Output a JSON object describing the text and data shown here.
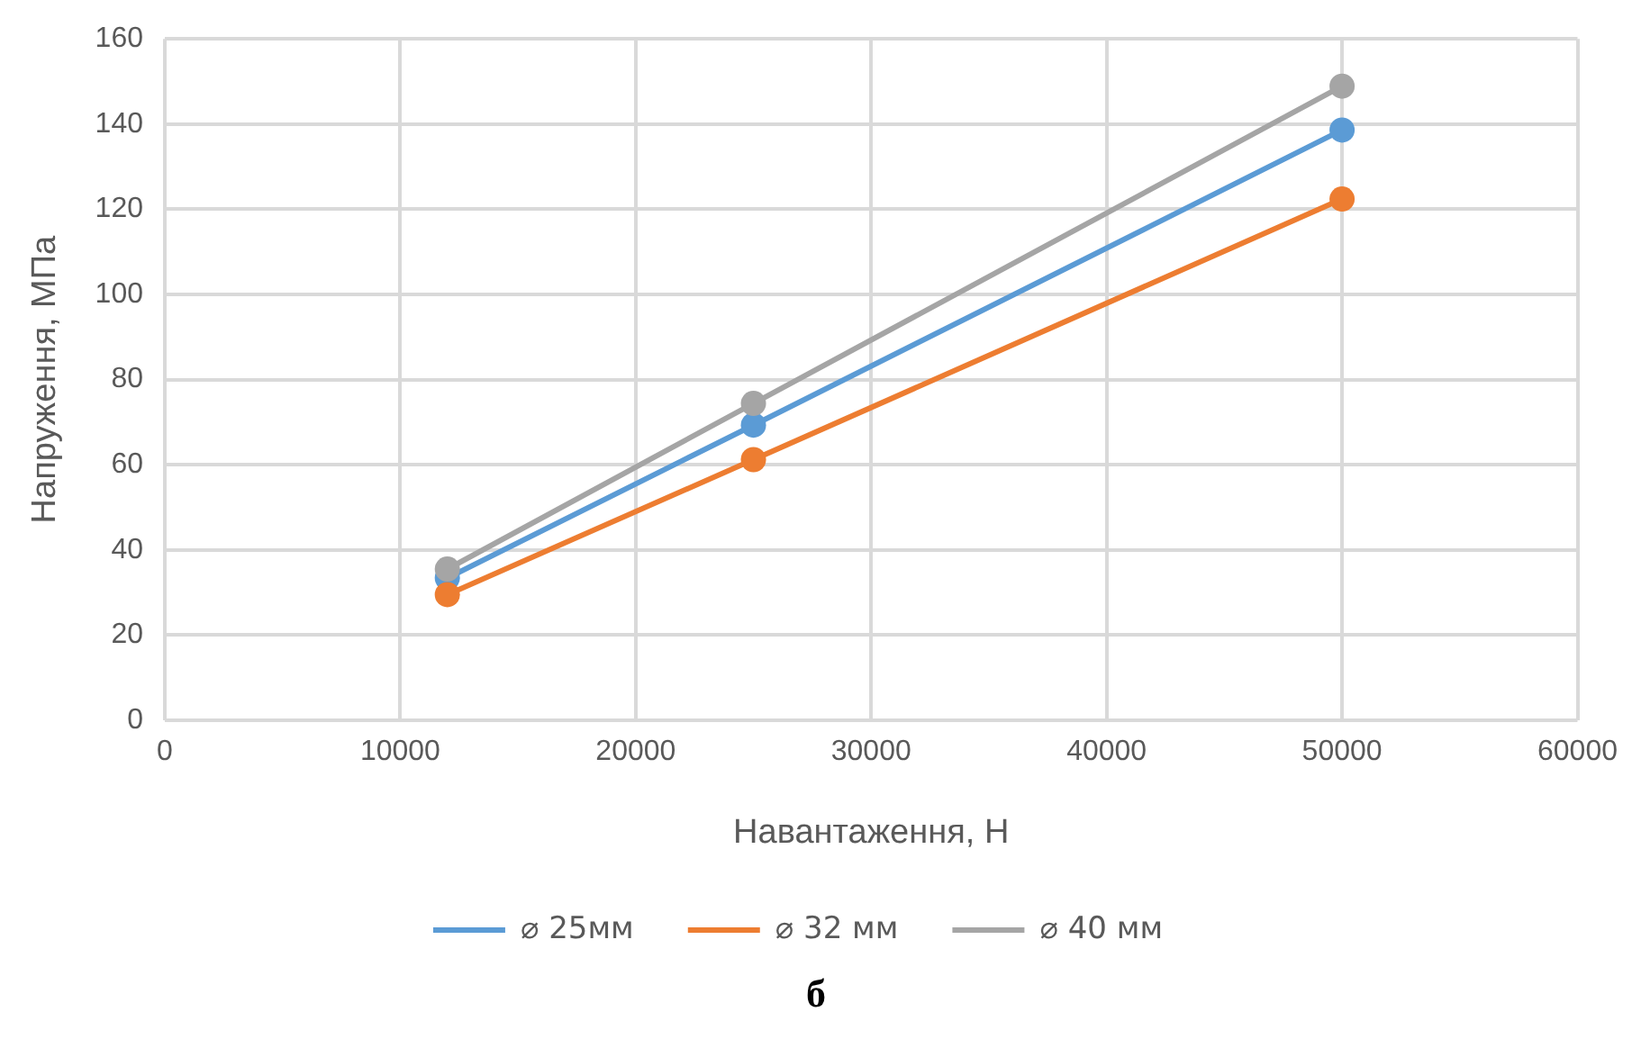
{
  "chart_data": {
    "type": "line",
    "xlabel": "Навантаження, Н",
    "ylabel": "Напруження, МПа",
    "x": [
      12000,
      25000,
      50000
    ],
    "series": [
      {
        "name": "⌀ 25мм",
        "color": "#5b9bd5",
        "values": [
          33.4,
          69.3,
          138.6
        ]
      },
      {
        "name": "⌀ 32 мм",
        "color": "#ed7d31",
        "values": [
          29.5,
          61.2,
          122.4
        ]
      },
      {
        "name": "⌀ 40 мм",
        "color": "#a5a5a5",
        "values": [
          35.5,
          74.4,
          148.9
        ]
      }
    ],
    "xlim": [
      0,
      60000
    ],
    "xticks": [
      0,
      10000,
      20000,
      30000,
      40000,
      50000,
      60000
    ],
    "ylim": [
      0,
      160
    ],
    "yticks": [
      0,
      20,
      40,
      60,
      80,
      100,
      120,
      140,
      160
    ],
    "grid": true,
    "legend": "bottom",
    "marker": "circle",
    "line_style": "solid",
    "annotations": [
      "б"
    ]
  }
}
